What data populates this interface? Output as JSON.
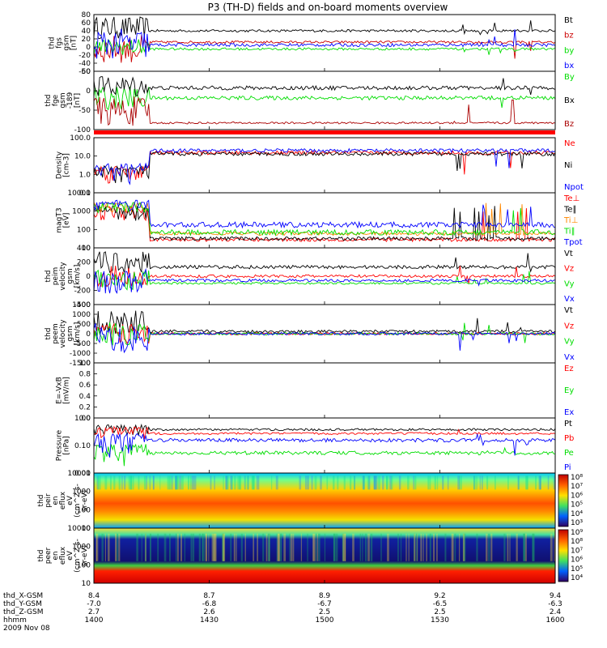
{
  "figure": {
    "title": "P3 (TH-D) fields and on-board moments overview",
    "footer_rows": [
      {
        "label": "thd_X-GSM",
        "values": [
          "8.4",
          "8.7",
          "8.9",
          "9.2",
          "9.4"
        ]
      },
      {
        "label": "thd_Y-GSM",
        "values": [
          "-7.0",
          "-6.8",
          "-6.7",
          "-6.5",
          "-6.3"
        ]
      },
      {
        "label": "thd_Z-GSM",
        "values": [
          "2.7",
          "2.6",
          "2.5",
          "2.5",
          "2.4"
        ]
      },
      {
        "label": "hhmm",
        "values": [
          "1400",
          "1430",
          "1500",
          "1530",
          "1600"
        ]
      }
    ],
    "date": "2009 Nov 08"
  },
  "colors": {
    "black": "#000000",
    "red": "#ff0000",
    "dark_red": "#aa0000",
    "green": "#00dd00",
    "blue": "#0000ff",
    "orange": "#ff8800"
  },
  "chart_data": [
    {
      "type": "line",
      "id": "fgs",
      "ylabel": [
        "thd",
        "fgs",
        "gsm",
        "[nT]"
      ],
      "yticks": [
        "80",
        "60",
        "40",
        "20",
        "0",
        "-20",
        "-40",
        "-60"
      ],
      "ylim": [
        -60,
        80
      ],
      "series": [
        {
          "name": "Bt",
          "color": "#000000",
          "level": 40,
          "early": [
            20,
            75
          ],
          "noise": 3
        },
        {
          "name": "bz",
          "color": "#cc0000",
          "level": 12,
          "early": [
            -40,
            30
          ],
          "noise": 3
        },
        {
          "name": "by",
          "color": "#00dd00",
          "level": -5,
          "early": [
            -20,
            20
          ],
          "noise": 3
        },
        {
          "name": "bx",
          "color": "#0000ff",
          "level": 5,
          "early": [
            -30,
            45
          ],
          "noise": 4
        }
      ]
    },
    {
      "type": "line",
      "id": "fge",
      "ylabel": [
        "thd",
        "fge",
        "gsm",
        "-189",
        "[nT]"
      ],
      "yticks": [
        "50",
        "0",
        "-50",
        "-100"
      ],
      "ylim": [
        -120,
        55
      ],
      "series": [
        {
          "name": "By",
          "color": "#00dd00",
          "level": -25,
          "early": [
            -60,
            10
          ],
          "noise": 6
        },
        {
          "name": "Bx",
          "color": "#000000",
          "level": 5,
          "early": [
            -20,
            40
          ],
          "noise": 6
        },
        {
          "name": "Bz",
          "color": "#aa0000",
          "level": -100,
          "early": [
            -110,
            -20
          ],
          "noise": 3
        }
      ]
    },
    {
      "type": "line",
      "id": "density",
      "ylabel": [
        "Density",
        "[cm-3]"
      ],
      "yticks": [
        "100.0",
        "10.0",
        "1.0",
        "0.1"
      ],
      "scale": "log",
      "ylim": [
        0.1,
        100
      ],
      "series": [
        {
          "name": "Ne",
          "color": "#ff0000",
          "level": 15,
          "early": [
            0.3,
            3
          ],
          "noise": 0.1
        },
        {
          "name": "Ni",
          "color": "#000000",
          "level": 13,
          "early": [
            0.3,
            3
          ],
          "noise": 0.1
        },
        {
          "name": "Npot",
          "color": "#0000ff",
          "level": 20,
          "early": [
            0.3,
            4
          ],
          "noise": 0.1
        }
      ]
    },
    {
      "type": "line",
      "id": "temp",
      "ylabel": [
        "magT3",
        "[eV]"
      ],
      "yticks": [
        "10000",
        "1000",
        "100",
        "10"
      ],
      "scale": "log",
      "ylim": [
        10,
        10000
      ],
      "series": [
        {
          "name": "Te⊥",
          "color": "#ff0000",
          "level": 28,
          "early": [
            300,
            2000
          ],
          "noise": 0.1
        },
        {
          "name": "Te∥",
          "color": "#000000",
          "level": 32,
          "early": [
            300,
            2000
          ],
          "noise": 0.1
        },
        {
          "name": "Ti⊥",
          "color": "#ff8800",
          "level": 60,
          "early": [
            800,
            3000
          ],
          "noise": 0.1
        },
        {
          "name": "Ti∥",
          "color": "#00dd00",
          "level": 70,
          "early": [
            800,
            3000
          ],
          "noise": 0.15
        },
        {
          "name": "Tpot",
          "color": "#0000ff",
          "level": 180,
          "early": [
            1000,
            4000
          ],
          "noise": 0.15
        }
      ]
    },
    {
      "type": "line",
      "id": "peim",
      "ylabel": [
        "thd",
        "peim",
        "velocity",
        "gsm",
        "[km/s]"
      ],
      "yticks": [
        "400",
        "200",
        "0",
        "-200",
        "-400"
      ],
      "ylim": [
        -400,
        400
      ],
      "series": [
        {
          "name": "Vt",
          "color": "#000000",
          "level": 130,
          "early": [
            50,
            350
          ],
          "noise": 25
        },
        {
          "name": "Vz",
          "color": "#ff0000",
          "level": 0,
          "early": [
            -150,
            150
          ],
          "noise": 20
        },
        {
          "name": "Vy",
          "color": "#00dd00",
          "level": -100,
          "early": [
            -200,
            100
          ],
          "noise": 15
        },
        {
          "name": "Vx",
          "color": "#0000ff",
          "level": -60,
          "early": [
            -250,
            100
          ],
          "noise": 20
        }
      ]
    },
    {
      "type": "line",
      "id": "peem",
      "ylabel": [
        "thd",
        "peem",
        "velocity",
        "gsm",
        "[km/s]"
      ],
      "yticks": [
        "1500",
        "1000",
        "500",
        "0",
        "-500",
        "-1000",
        "-1500"
      ],
      "ylim": [
        -1500,
        1500
      ],
      "series": [
        {
          "name": "Vt",
          "color": "#000000",
          "level": 120,
          "early": [
            0,
            1200
          ],
          "noise": 70
        },
        {
          "name": "Vz",
          "color": "#ff0000",
          "level": 0,
          "early": [
            -500,
            500
          ],
          "noise": 60
        },
        {
          "name": "Vy",
          "color": "#00dd00",
          "level": 0,
          "early": [
            -600,
            600
          ],
          "noise": 60
        },
        {
          "name": "Vx",
          "color": "#0000ff",
          "level": 0,
          "early": [
            -1000,
            600
          ],
          "noise": 70
        }
      ]
    },
    {
      "type": "line",
      "id": "efield",
      "ylabel": [
        "E=-VxB",
        "[mV/m]"
      ],
      "yticks": [
        "1.0",
        "0.8",
        "0.6",
        "0.4",
        "0.2",
        "0.0"
      ],
      "ylim": [
        0,
        1
      ],
      "series": [
        {
          "name": "Ez",
          "color": "#ff0000",
          "values": []
        },
        {
          "name": "Ey",
          "color": "#00dd00",
          "values": []
        },
        {
          "name": "Ex",
          "color": "#0000ff",
          "values": []
        }
      ]
    },
    {
      "type": "line",
      "id": "pressure",
      "ylabel": [
        "Pressure",
        "[nPa]"
      ],
      "yticks": [
        "1.00",
        "0.10",
        "0.01"
      ],
      "scale": "log",
      "ylim": [
        0.01,
        3
      ],
      "series": [
        {
          "name": "Pt",
          "color": "#000000",
          "level": 0.9,
          "early": [
            0.5,
            1.5
          ],
          "noise": 0.05
        },
        {
          "name": "Pb",
          "color": "#ff0000",
          "level": 0.6,
          "early": [
            0.3,
            1.2
          ],
          "noise": 0.05
        },
        {
          "name": "Pe",
          "color": "#00dd00",
          "level": 0.08,
          "early": [
            0.02,
            0.2
          ],
          "noise": 0.08
        },
        {
          "name": "Pi",
          "color": "#0000ff",
          "level": 0.3,
          "early": [
            0.05,
            0.6
          ],
          "noise": 0.08
        }
      ]
    },
    {
      "type": "heatmap",
      "id": "peir",
      "ylabel": [
        "thd",
        "peir",
        "en",
        "eflux",
        "eV",
        "(cm^2-s-",
        "sr-eV)"
      ],
      "yticks": [
        "10000",
        "1000",
        "100",
        "10"
      ],
      "colorbar": [
        "10⁸",
        "10⁷",
        "10⁶",
        "10⁵",
        "10⁴",
        "10³"
      ]
    },
    {
      "type": "heatmap",
      "id": "peer",
      "ylabel": [
        "thd",
        "peer",
        "en",
        "eflux",
        "eV",
        "(cm^2-s-",
        "sr-eV)"
      ],
      "yticks": [
        "10000",
        "1000",
        "100",
        "10"
      ],
      "colorbar": [
        "10⁹",
        "10⁸",
        "10⁷",
        "10⁶",
        "10⁵",
        "10⁴"
      ]
    }
  ],
  "xaxis": {
    "ticks": [
      "1400",
      "1430",
      "1500",
      "1530",
      "1600"
    ]
  }
}
